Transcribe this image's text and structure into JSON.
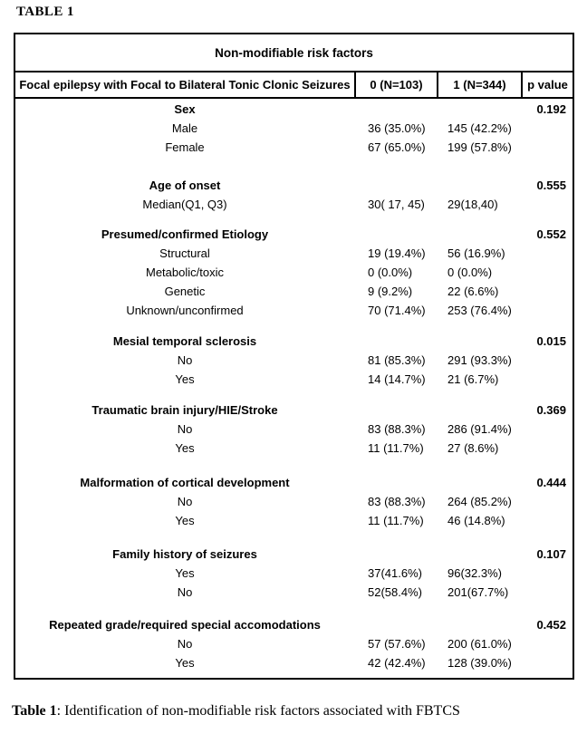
{
  "page": {
    "heading": "TABLE 1",
    "caption_label": "Table 1",
    "caption_text": ": Identification of non-modifiable risk factors associated with FBTCS"
  },
  "table": {
    "title": "Non-modifiable risk factors",
    "header": {
      "label": "Focal epilepsy with Focal to Bilateral Tonic Clonic Seizures",
      "col0": "0 (N=103)",
      "col1": "1 (N=344)",
      "p": "p value"
    },
    "sections": [
      {
        "name": "Sex",
        "p": "0.192",
        "rows": [
          {
            "label": "Male",
            "v0": "36 (35.0%)",
            "v1": "145 (42.2%)"
          },
          {
            "label": "Female",
            "v0": "67 (65.0%)",
            "v1": "199 (57.8%)"
          }
        ]
      },
      {
        "name": "Age of onset",
        "p": "0.555",
        "rows": [
          {
            "label": "Median(Q1, Q3)",
            "v0": "30( 17, 45)",
            "v1": "29(18,40)"
          }
        ]
      },
      {
        "name": "Presumed/confirmed Etiology",
        "p": "0.552",
        "rows": [
          {
            "label": "Structural",
            "v0": "19 (19.4%)",
            "v1": "56 (16.9%)"
          },
          {
            "label": "Metabolic/toxic",
            "v0": "0 (0.0%)",
            "v1": "0 (0.0%)"
          },
          {
            "label": "Genetic",
            "v0": "9 (9.2%)",
            "v1": "22 (6.6%)"
          },
          {
            "label": "Unknown/unconfirmed",
            "v0": "70 (71.4%)",
            "v1": "253 (76.4%)"
          }
        ]
      },
      {
        "name": "Mesial temporal sclerosis",
        "p": "0.015",
        "rows": [
          {
            "label": "No",
            "v0": "81 (85.3%)",
            "v1": "291 (93.3%)"
          },
          {
            "label": "Yes",
            "v0": "14 (14.7%)",
            "v1": "21 (6.7%)"
          }
        ]
      },
      {
        "name": "Traumatic brain injury/HIE/Stroke",
        "p": "0.369",
        "rows": [
          {
            "label": "No",
            "v0": "83 (88.3%)",
            "v1": "286 (91.4%)"
          },
          {
            "label": "Yes",
            "v0": "11 (11.7%)",
            "v1": "27 (8.6%)"
          }
        ]
      },
      {
        "name": "Malformation of cortical development",
        "p": "0.444",
        "rows": [
          {
            "label": "No",
            "v0": "83 (88.3%)",
            "v1": "264 (85.2%)"
          },
          {
            "label": "Yes",
            "v0": "11 (11.7%)",
            "v1": "46 (14.8%)"
          }
        ]
      },
      {
        "name": "Family history of seizures",
        "p": "0.107",
        "rows": [
          {
            "label": "Yes",
            "v0": "37(41.6%)",
            "v1": "96(32.3%)"
          },
          {
            "label": "No",
            "v0": "52(58.4%)",
            "v1": "201(67.7%)"
          }
        ]
      },
      {
        "name": "Repeated grade/required special accomodations",
        "p": "0.452",
        "rows": [
          {
            "label": "No",
            "v0": "57 (57.6%)",
            "v1": "200 (61.0%)"
          },
          {
            "label": "Yes",
            "v0": "42 (42.4%)",
            "v1": "128 (39.0%)"
          }
        ]
      }
    ]
  }
}
